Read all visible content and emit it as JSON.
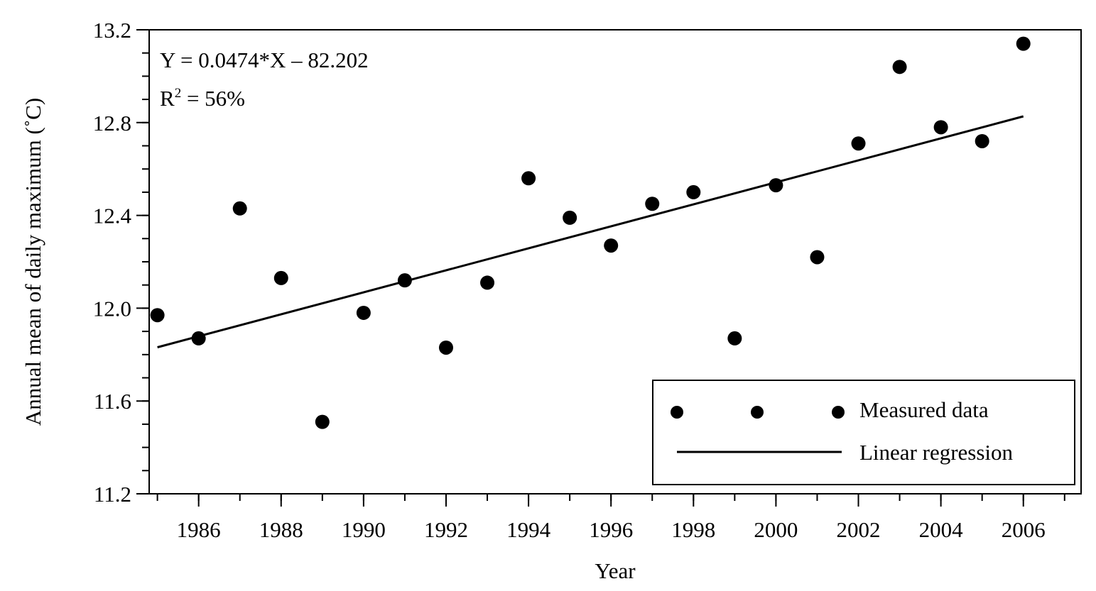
{
  "chart_data": {
    "type": "scatter",
    "xlabel": "Year",
    "ylabel": "Annual mean of daily maximum (˚C)",
    "xlim": [
      1984.8,
      2007.4
    ],
    "ylim": [
      11.2,
      13.2
    ],
    "x_ticks": [
      1986,
      1988,
      1990,
      1992,
      1994,
      1996,
      1998,
      2000,
      2002,
      2004,
      2006
    ],
    "y_ticks": [
      "11.2",
      "11.6",
      "12.0",
      "12.4",
      "12.8",
      "13.2"
    ],
    "annotations": {
      "equation": "Y = 0.0474*X – 82.202",
      "r2_prefix": "R",
      "r2_sup": "2",
      "r2_suffix": " = 56%"
    },
    "legend": {
      "placement": "bottom-right",
      "entries": [
        "Measured data",
        "Linear regression"
      ]
    },
    "regression": {
      "slope": 0.0474,
      "intercept": -82.202,
      "x_range": [
        1985,
        2006
      ]
    },
    "series": [
      {
        "name": "Measured data",
        "x": [
          1985,
          1986,
          1987,
          1988,
          1989,
          1990,
          1991,
          1992,
          1993,
          1994,
          1995,
          1996,
          1997,
          1998,
          1999,
          2000,
          2001,
          2002,
          2003,
          2004,
          2005,
          2006
        ],
        "y": [
          11.97,
          11.87,
          12.43,
          12.13,
          11.51,
          11.98,
          12.12,
          11.83,
          12.11,
          12.56,
          12.39,
          12.27,
          12.45,
          12.5,
          11.87,
          12.53,
          12.22,
          12.71,
          13.04,
          12.78,
          12.72,
          13.14
        ]
      },
      {
        "name": "Linear regression",
        "x": [
          1985,
          2006
        ],
        "y": [
          11.8315,
          12.8269
        ]
      }
    ]
  }
}
